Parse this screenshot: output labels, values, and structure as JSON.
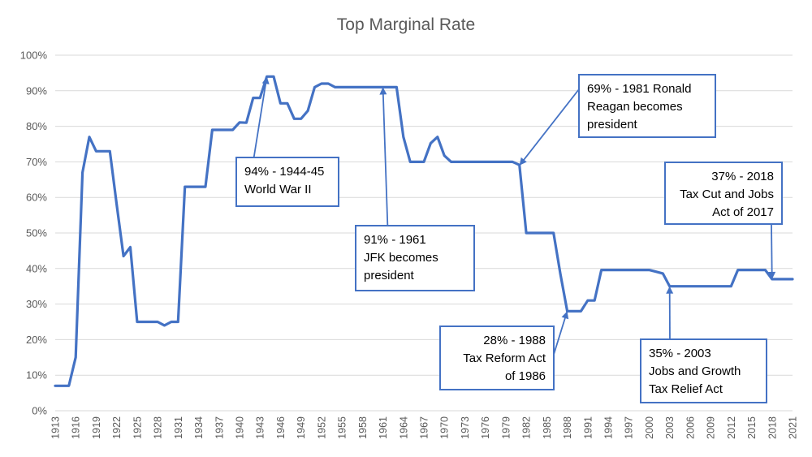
{
  "chart_data": {
    "type": "line",
    "title": "Top Marginal Rate",
    "xlabel": "",
    "ylabel": "",
    "ylim": [
      0,
      100
    ],
    "y_ticks": [
      "0%",
      "10%",
      "20%",
      "30%",
      "40%",
      "50%",
      "60%",
      "70%",
      "80%",
      "90%",
      "100%"
    ],
    "x_ticks": [
      "1913",
      "1916",
      "1919",
      "1922",
      "1925",
      "1928",
      "1931",
      "1934",
      "1937",
      "1940",
      "1943",
      "1946",
      "1949",
      "1952",
      "1955",
      "1958",
      "1961",
      "1964",
      "1967",
      "1970",
      "1973",
      "1976",
      "1979",
      "1982",
      "1985",
      "1988",
      "1991",
      "1994",
      "1997",
      "2000",
      "2003",
      "2006",
      "2009",
      "2012",
      "2015",
      "2018",
      "2021"
    ],
    "grid": true,
    "legend": "none",
    "series_color": "#4472c4",
    "series": [
      {
        "x": [
          1913,
          1914,
          1915,
          1916,
          1917,
          1918,
          1919,
          1920,
          1921,
          1922,
          1923,
          1924,
          1925,
          1926,
          1927,
          1928,
          1929,
          1930,
          1931,
          1932,
          1933,
          1934,
          1935,
          1936,
          1937,
          1938,
          1939,
          1940,
          1941,
          1942,
          1943,
          1944,
          1945,
          1946,
          1947,
          1948,
          1949,
          1950,
          1951,
          1952,
          1953,
          1954,
          1955,
          1956,
          1957,
          1958,
          1959,
          1960,
          1961,
          1962,
          1963,
          1964,
          1965,
          1966,
          1967,
          1968,
          1969,
          1970,
          1971,
          1972,
          1973,
          1974,
          1975,
          1976,
          1977,
          1978,
          1979,
          1980,
          1981,
          1982,
          1983,
          1984,
          1985,
          1986,
          1987,
          1988,
          1989,
          1990,
          1991,
          1992,
          1993,
          1994,
          1995,
          1996,
          1997,
          1998,
          1999,
          2000,
          2001,
          2002,
          2003,
          2004,
          2005,
          2006,
          2007,
          2008,
          2009,
          2010,
          2011,
          2012,
          2013,
          2014,
          2015,
          2016,
          2017,
          2018,
          2019,
          2020,
          2021
        ],
        "y": [
          7,
          7,
          7,
          15,
          67,
          77,
          73,
          73,
          73,
          58,
          43.5,
          46,
          25,
          25,
          25,
          25,
          24,
          25,
          25,
          63,
          63,
          63,
          63,
          79,
          79,
          79,
          79,
          81.1,
          81,
          88,
          88,
          94,
          94,
          86.45,
          86.45,
          82.13,
          82.13,
          84.36,
          91,
          92,
          92,
          91,
          91,
          91,
          91,
          91,
          91,
          91,
          91,
          91,
          91,
          77,
          70,
          70,
          70,
          75.25,
          77,
          71.75,
          70,
          70,
          70,
          70,
          70,
          70,
          70,
          70,
          70,
          70,
          69.13,
          50,
          50,
          50,
          50,
          50,
          38.5,
          28,
          28,
          28,
          31,
          31,
          39.6,
          39.6,
          39.6,
          39.6,
          39.6,
          39.6,
          39.6,
          39.6,
          39.1,
          38.6,
          35,
          35,
          35,
          35,
          35,
          35,
          35,
          35,
          35,
          35,
          39.6,
          39.6,
          39.6,
          39.6,
          39.6,
          37,
          37,
          37,
          37
        ]
      }
    ],
    "annotations": [
      {
        "lines": [
          "94% - 1944-45",
          "World War II"
        ],
        "x": 1944,
        "y": 94
      },
      {
        "lines": [
          "91% - 1961",
          "JFK becomes",
          "president"
        ],
        "x": 1961,
        "y": 91
      },
      {
        "lines": [
          "69% - 1981 Ronald",
          "Reagan becomes",
          "president"
        ],
        "x": 1981,
        "y": 69
      },
      {
        "lines": [
          "28% - 1988",
          "Tax Reform Act",
          "of 1986"
        ],
        "x": 1988,
        "y": 28
      },
      {
        "lines": [
          "35% - 2003",
          "Jobs and Growth",
          "Tax Relief Act"
        ],
        "x": 2003,
        "y": 35
      },
      {
        "lines": [
          "37% - 2018",
          "Tax Cut and Jobs",
          "Act of 2017"
        ],
        "x": 2018,
        "y": 37
      }
    ]
  }
}
